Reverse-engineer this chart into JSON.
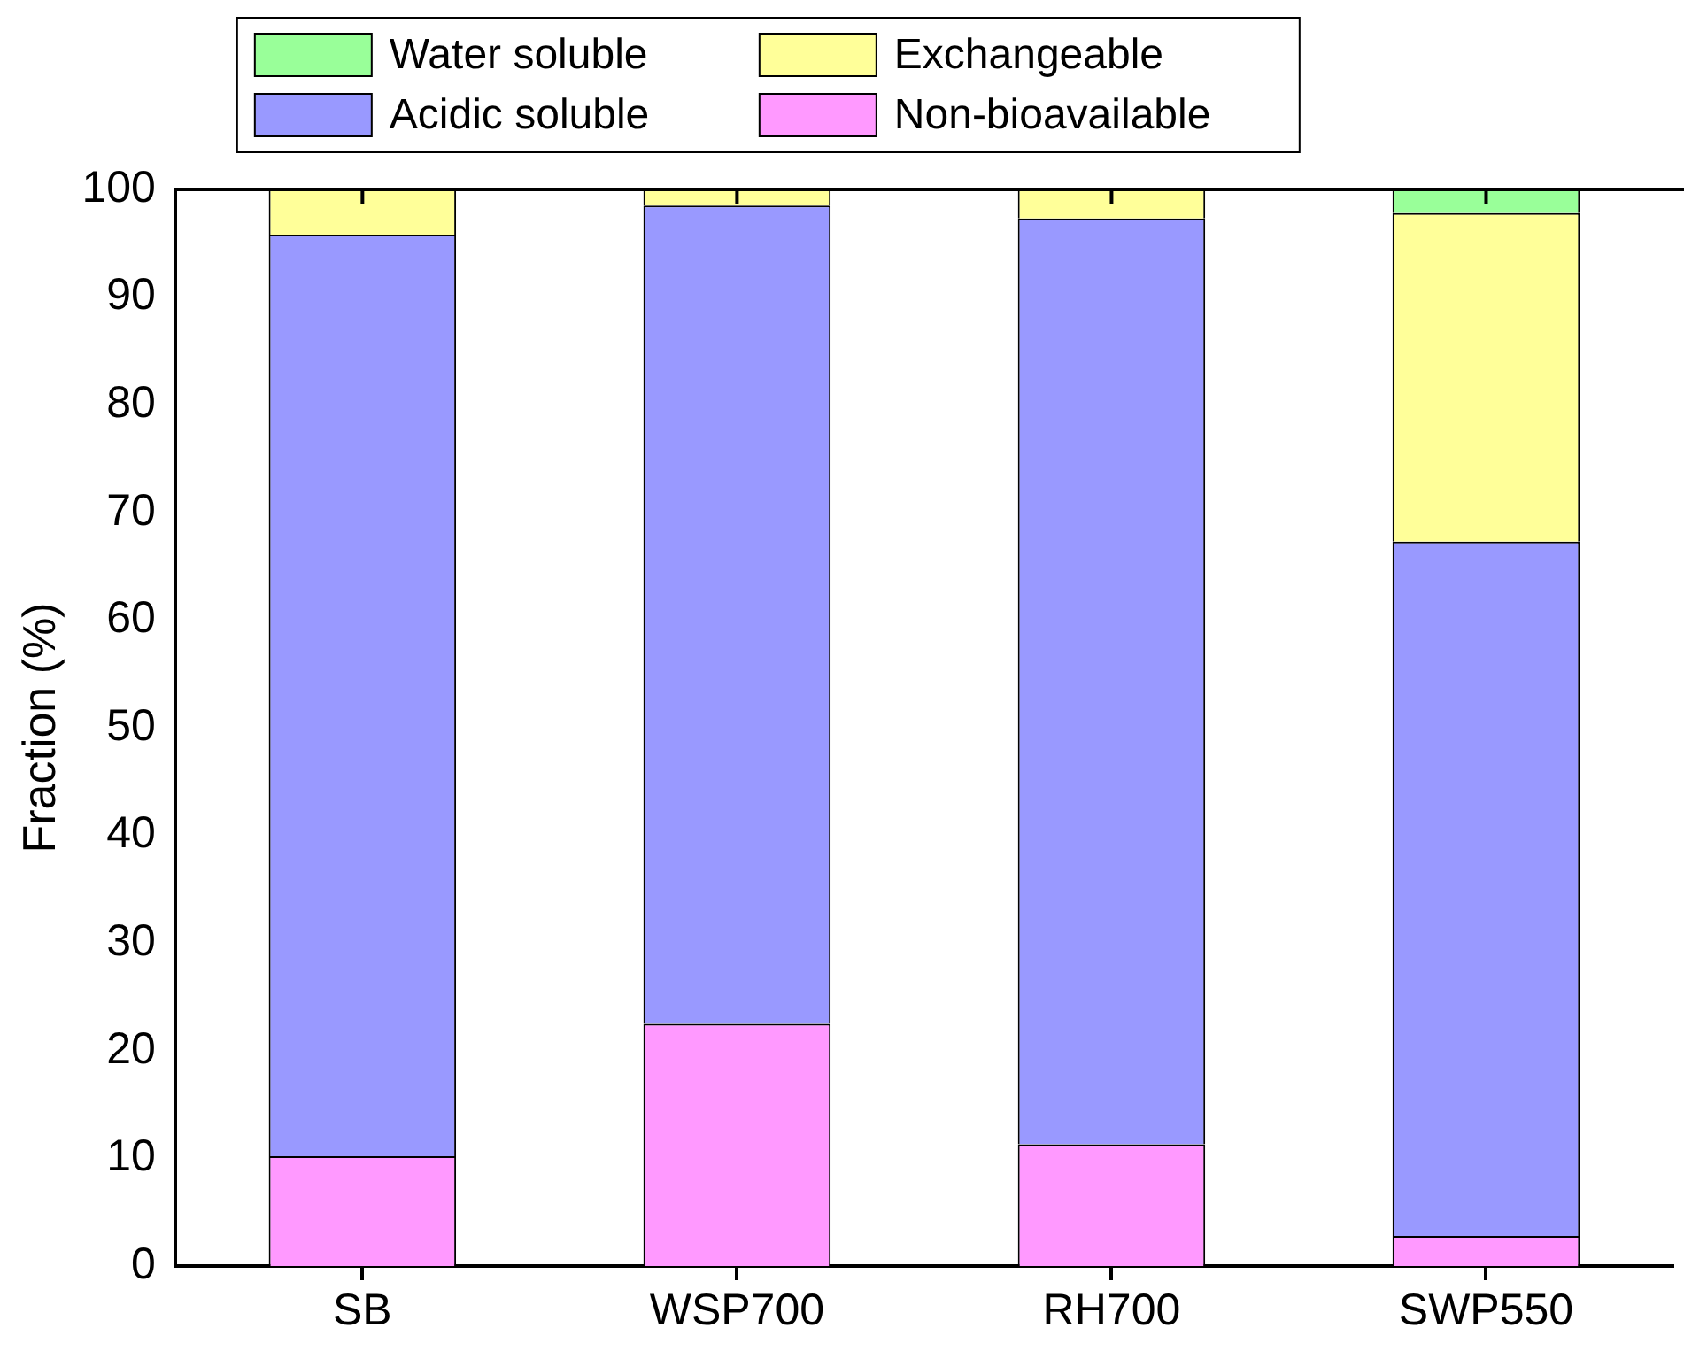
{
  "chart_data": {
    "type": "bar",
    "stacked": true,
    "ylabel": "Fraction (%)",
    "categories": [
      "SB",
      "WSP700",
      "RH700",
      "SWP550"
    ],
    "series": [
      {
        "name": "Non-bioavailable",
        "color": "#ff99ff",
        "values": [
          10.2,
          22.5,
          11.3,
          2.8
        ]
      },
      {
        "name": "Acidic soluble",
        "color": "#9999ff",
        "values": [
          85.6,
          76.0,
          86.0,
          64.5
        ]
      },
      {
        "name": "Exchangeable",
        "color": "#ffff99",
        "values": [
          4.2,
          1.5,
          2.7,
          30.5
        ]
      },
      {
        "name": "Water soluble",
        "color": "#99ff99",
        "values": [
          0,
          0,
          0,
          2.2
        ]
      }
    ],
    "ylim": [
      0,
      100
    ],
    "yticks": [
      0,
      10,
      20,
      30,
      40,
      50,
      60,
      70,
      80,
      90,
      100
    ],
    "grid": false,
    "legend": "top"
  }
}
